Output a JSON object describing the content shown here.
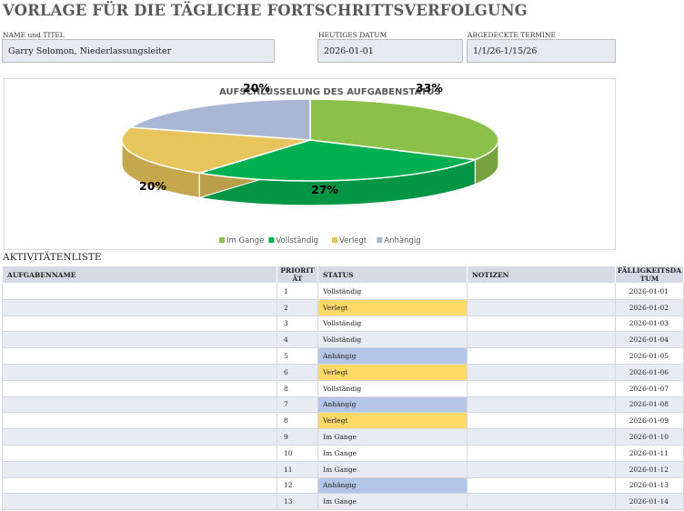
{
  "header": {
    "title": "VORLAGE FÜR DIE TÄGLICHE FORTSCHRITTSVERFOLGUNG",
    "name_label": "NAME und TITEL",
    "name_value": "Garry Solomon, Niederlassungsleiter",
    "date_label": "HEUTIGES DATUM",
    "date_value": "2026-01-01",
    "range_label": "ABGEDECKTE TERMINE",
    "range_value": "1/1/26-1/15/26"
  },
  "chart_data": {
    "type": "pie",
    "title": "AUFSCHLÜSSELUNG DES AUFGABENSTATUS",
    "categories": [
      "Im Gange",
      "Vollständig",
      "Verlegt",
      "Anhängig"
    ],
    "values": [
      33,
      27,
      20,
      20
    ],
    "data_labels": [
      "33%",
      "27%",
      "20%",
      "20%"
    ],
    "colors": [
      "#8bc04a",
      "#00b050",
      "#e8c55c",
      "#a9b7d4"
    ],
    "legend_position": "bottom"
  },
  "activity": {
    "title": "AKTIVITÄTENLISTE",
    "columns": {
      "name": "AUFGABENNAME",
      "priority": "PRIORITÄT",
      "status": "STATUS",
      "notes": "NOTIZEN",
      "due": "FÄLLIGKEITSDATUM"
    },
    "rows": [
      {
        "name": "",
        "priority": "1",
        "status": "Vollständig",
        "notes": "",
        "due": "2026-01-01"
      },
      {
        "name": "",
        "priority": "2",
        "status": "Verlegt",
        "notes": "",
        "due": "2026-01-02"
      },
      {
        "name": "",
        "priority": "3",
        "status": "Vollständig",
        "notes": "",
        "due": "2026-01-03"
      },
      {
        "name": "",
        "priority": "4",
        "status": "Vollständig",
        "notes": "",
        "due": "2026-01-04"
      },
      {
        "name": "",
        "priority": "5",
        "status": "Anhängig",
        "notes": "",
        "due": "2026-01-05"
      },
      {
        "name": "",
        "priority": "6",
        "status": "Verlegt",
        "notes": "",
        "due": "2026-01-06"
      },
      {
        "name": "",
        "priority": "8",
        "status": "Vollständig",
        "notes": "",
        "due": "2026-01-07"
      },
      {
        "name": "",
        "priority": "7",
        "status": "Anhängig",
        "notes": "",
        "due": "2026-01-08"
      },
      {
        "name": "",
        "priority": "8",
        "status": "Verlegt",
        "notes": "",
        "due": "2026-01-09"
      },
      {
        "name": "",
        "priority": "9",
        "status": "Im Gange",
        "notes": "",
        "due": "2026-01-10"
      },
      {
        "name": "",
        "priority": "10",
        "status": "Im Gange",
        "notes": "",
        "due": "2026-01-11"
      },
      {
        "name": "",
        "priority": "11",
        "status": "Im Gange",
        "notes": "",
        "due": "2026-01-12"
      },
      {
        "name": "",
        "priority": "12",
        "status": "Anhängig",
        "notes": "",
        "due": "2026-01-13"
      },
      {
        "name": "",
        "priority": "13",
        "status": "Im Gange",
        "notes": "",
        "due": "2026-01-14"
      }
    ]
  }
}
